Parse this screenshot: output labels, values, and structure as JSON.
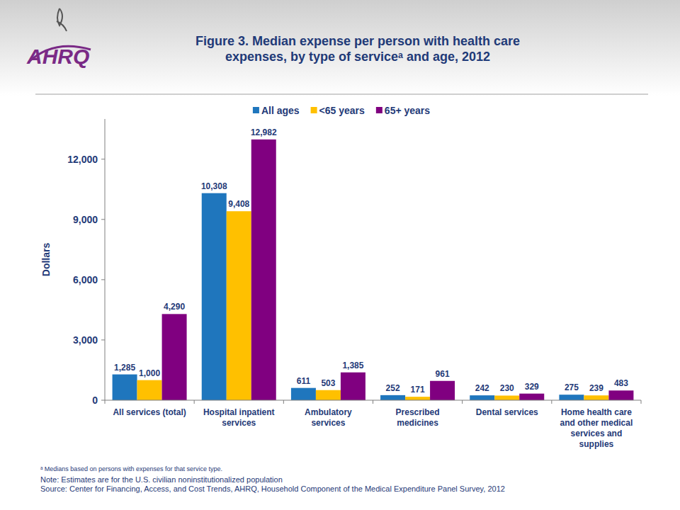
{
  "chart_data": {
    "type": "bar",
    "logo": "AHRQ",
    "title": "Figure 3. Median expense per person with health care expenses, by type of serviceᵃ and age, 2012",
    "y_label": "Dollars",
    "categories": [
      "All services (total)",
      "Hospital inpatient services",
      "Ambulatory services",
      "Prescribed medicines",
      "Dental services",
      "Home health care and other medical services and supplies"
    ],
    "series": [
      {
        "name": "All ages",
        "color": "#1f76bd",
        "values": [
          1285,
          10308,
          611,
          252,
          242,
          275
        ],
        "value_labels": [
          "1,285",
          "10,308",
          "611",
          "252",
          "242",
          "275"
        ]
      },
      {
        "name": "<65 years",
        "color": "#ffc000",
        "values": [
          1000,
          9408,
          503,
          171,
          230,
          239
        ],
        "value_labels": [
          "1,000",
          "9,408",
          "503",
          "171",
          "230",
          "239"
        ]
      },
      {
        "name": "65+ years",
        "color": "#800080",
        "values": [
          4290,
          12982,
          1385,
          961,
          329,
          483
        ],
        "value_labels": [
          "4,290",
          "12,982",
          "1,385",
          "961",
          "329",
          "483"
        ]
      }
    ],
    "ylim": [
      0,
      14000
    ],
    "yticks": [
      0,
      {
        "value": 3000,
        "label": "3,000"
      },
      {
        "value": 6000,
        "label": "6,000"
      },
      {
        "value": 9000,
        "label": "9,000"
      },
      {
        "value": 12000,
        "label": "12,000"
      }
    ],
    "grid": false,
    "legend": "top",
    "data_labels": true,
    "annotations": [
      "ᵃ Medians based on persons with expenses for that service type.",
      "Note: Estimates are for the U.S. civilian noninstitutionalized population",
      "Source: Center for Financing, Access, and Cost Trends, AHRQ, Household Component of the Medical Expenditure Panel Survey, 2012"
    ]
  }
}
